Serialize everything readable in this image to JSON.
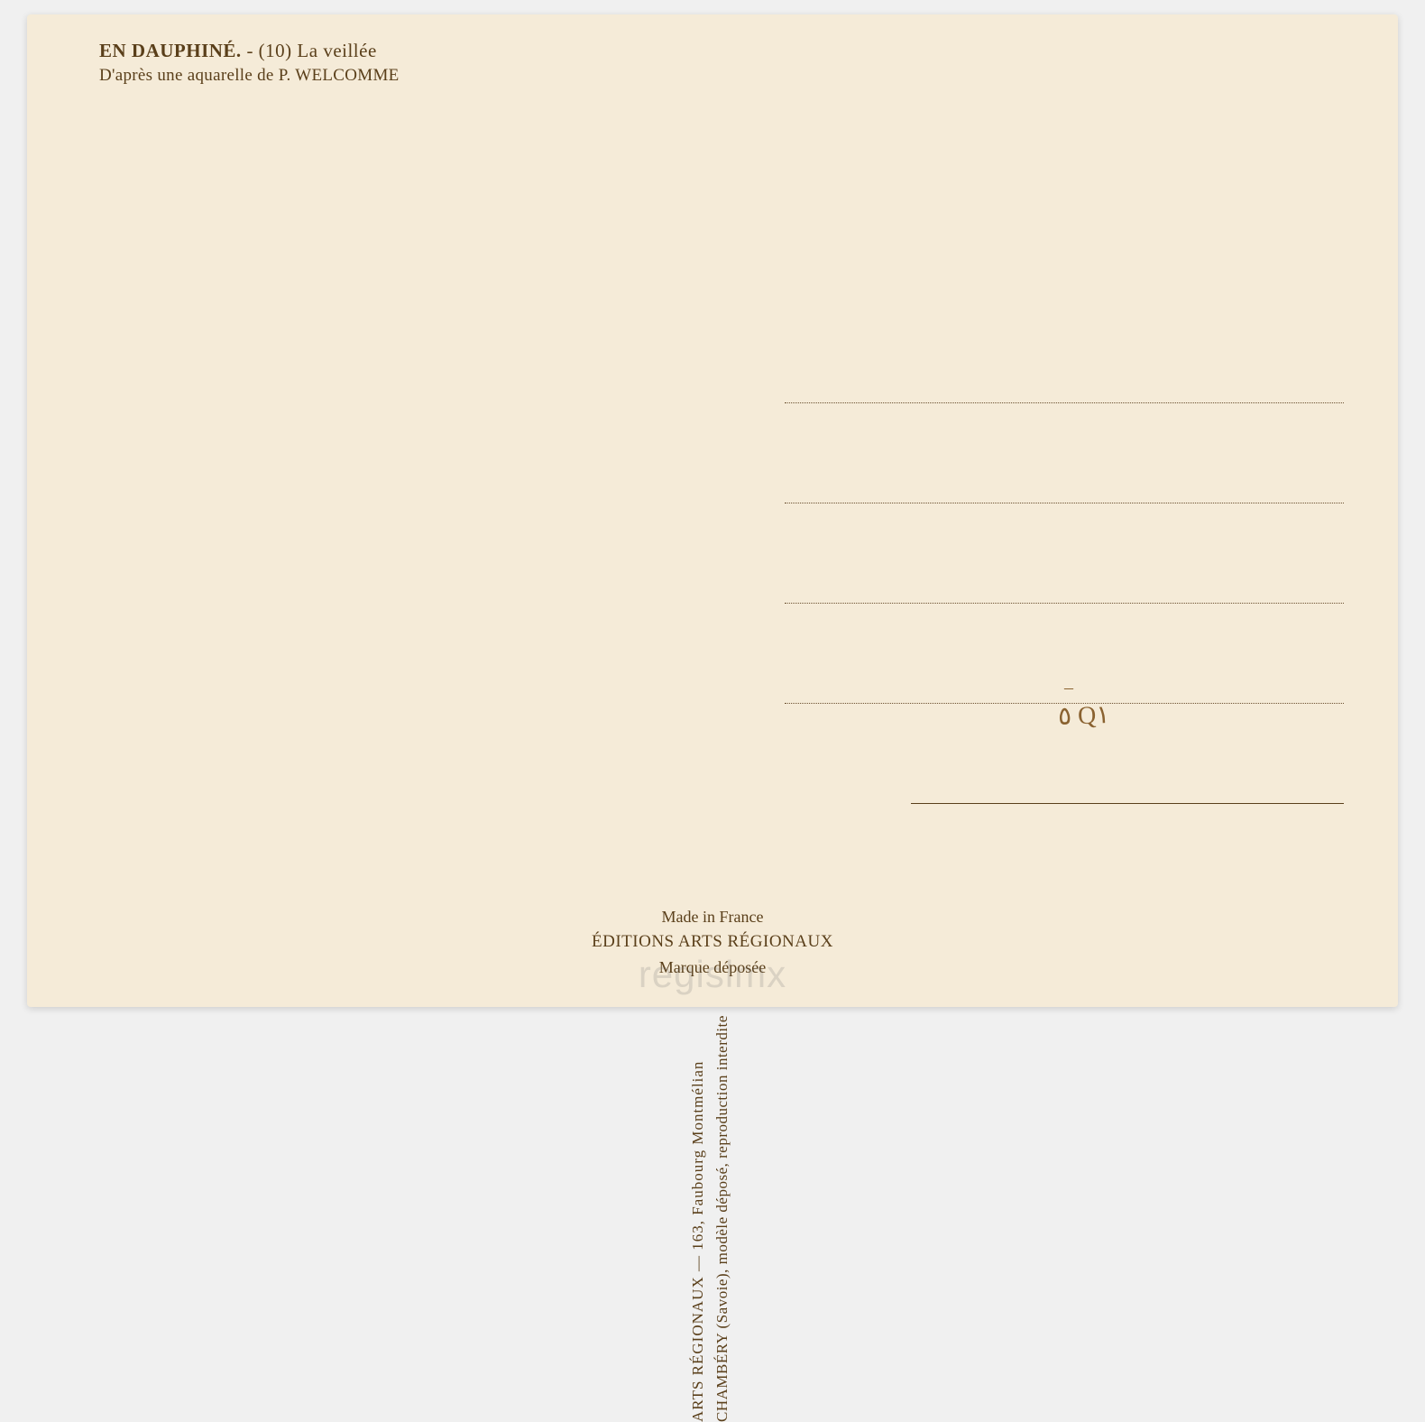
{
  "header": {
    "title_bold": "EN DAUPHINÉ.",
    "title_rest": " - (10) La veillée",
    "subtitle": "D'après une aquarelle de P. WELCOMME"
  },
  "vertical": {
    "line1": "ARTS RÉGIONAUX — 163, Faubourg Montmélian",
    "line2": "CHAMBÉRY (Savoie), modèle déposé, reproduction interdite"
  },
  "handwritten": {
    "text": "٥ Q١",
    "dash": "–"
  },
  "footer": {
    "line1": "Made in France",
    "line2": "ÉDITIONS ARTS RÉGIONAUX",
    "line3": "Marque déposée"
  },
  "watermark": "regislmx",
  "colors": {
    "background": "#f5ebd8",
    "text": "#5a3f1a",
    "handwriting": "#8a6230",
    "dotted": "#6b5030"
  }
}
